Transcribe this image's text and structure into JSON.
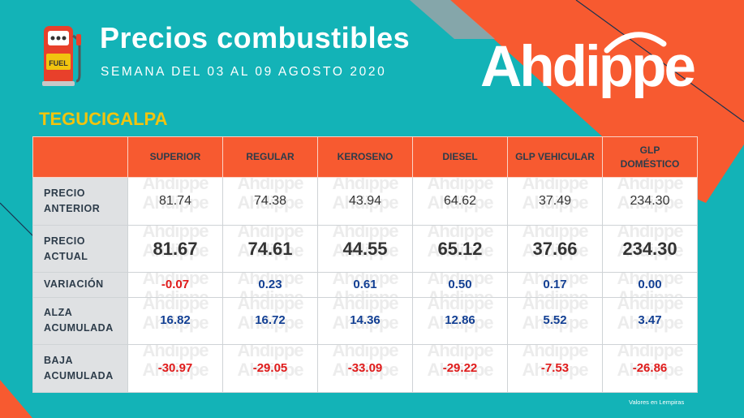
{
  "header": {
    "title": "Precios combustibles",
    "subtitle": "SEMANA DEL 03 AL 09 AGOSTO 2020",
    "fuel_label": "FUEL"
  },
  "brand": {
    "name": "Ahdippe",
    "primary_color": "#f75a30",
    "bg_color": "#13b3b7"
  },
  "city": "TEGUCIGALPA",
  "watermark": "Ahdippe",
  "table": {
    "columns": [
      "SUPERIOR",
      "REGULAR",
      "KEROSENO",
      "DIESEL",
      "GLP VEHICULAR",
      "GLP DOMÉSTICO"
    ],
    "rows": [
      {
        "label": "PRECIO ANTERIOR",
        "values": [
          "81.74",
          "74.38",
          "43.94",
          "64.62",
          "37.49",
          "234.30"
        ]
      },
      {
        "label": "PRECIO ACTUAL",
        "values": [
          "81.67",
          "74.61",
          "44.55",
          "65.12",
          "37.66",
          "234.30"
        ]
      },
      {
        "label": "VARIACIÓN",
        "values": [
          "-0.07",
          "0.23",
          "0.61",
          "0.50",
          "0.17",
          "0.00"
        ]
      },
      {
        "label": "ALZA ACUMULADA",
        "values": [
          "16.82",
          "16.72",
          "14.36",
          "12.86",
          "5.52",
          "3.47"
        ]
      },
      {
        "label": "BAJA ACUMULADA",
        "values": [
          "-30.97",
          "-29.05",
          "-33.09",
          "-29.22",
          "-7.53",
          "-26.86"
        ]
      }
    ]
  },
  "footnote": "Valores en Lempiras"
}
